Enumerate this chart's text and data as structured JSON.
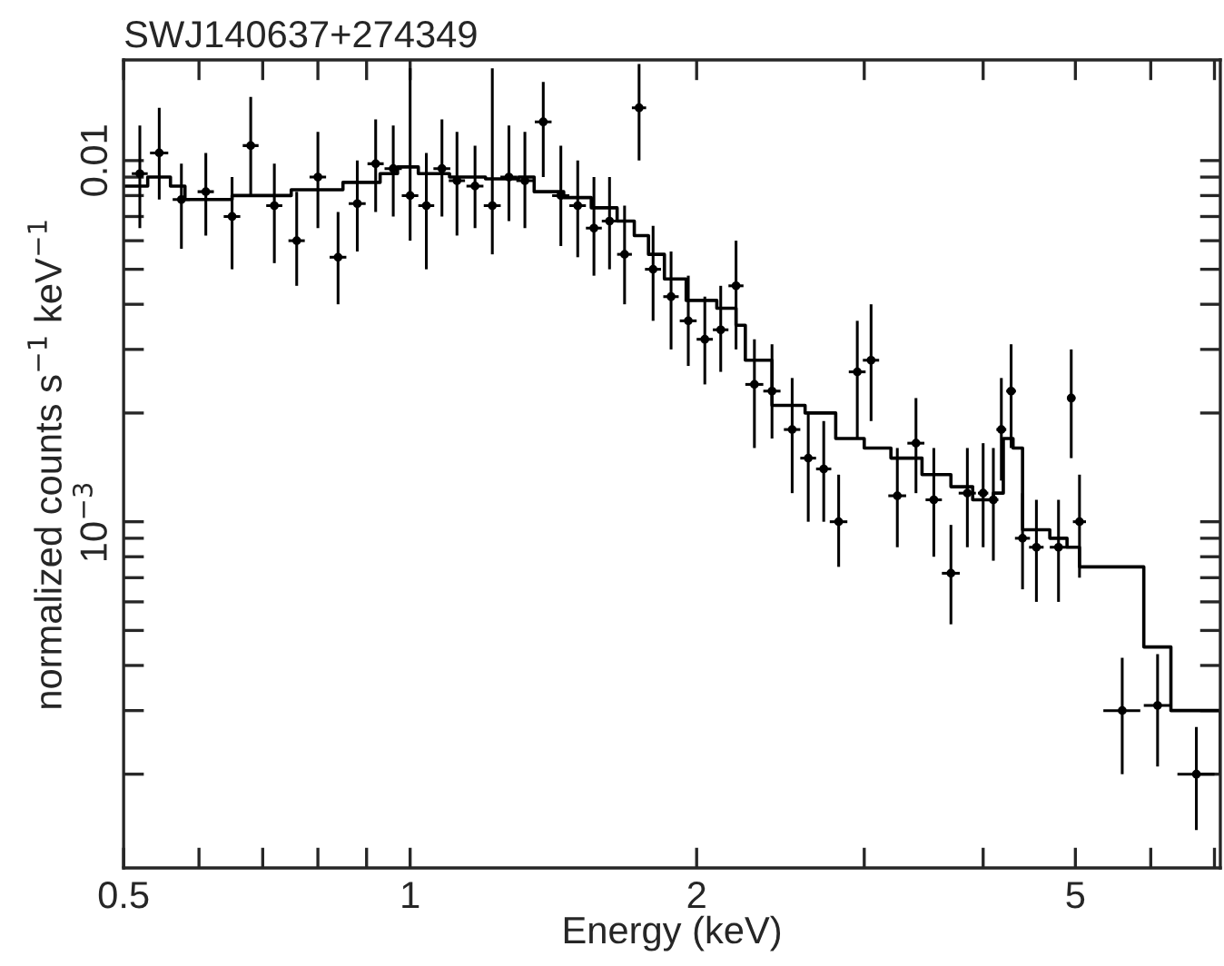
{
  "chart_data": {
    "type": "scatter",
    "title": "SWJ140637+274349",
    "xlabel": "Energy (keV)",
    "ylabel": "normalized counts s$^{−1}$ keV$^{−1}$",
    "log": "xy",
    "grid": false,
    "legend": false,
    "xlim": [
      0.5,
      7.1
    ],
    "ylim": [
      0.00011,
      0.019
    ],
    "xticks": [
      0.5,
      {
        "value": 0.6,
        "label": null
      },
      {
        "value": 0.7,
        "label": null
      },
      {
        "value": 0.8,
        "label": null
      },
      {
        "value": 0.9,
        "label": null
      },
      1,
      2,
      {
        "value": 3,
        "label": null
      },
      {
        "value": 4,
        "label": null
      },
      5,
      {
        "value": 6,
        "label": null
      },
      {
        "value": 7,
        "label": null
      }
    ],
    "yticks": [
      {
        "value": 0.0002,
        "label": null
      },
      {
        "value": 0.0003,
        "label": null
      },
      {
        "value": 0.0004,
        "label": null
      },
      {
        "value": 0.0005,
        "label": null
      },
      {
        "value": 0.0006,
        "label": null
      },
      {
        "value": 0.0007,
        "label": null
      },
      {
        "value": 0.0008,
        "label": null
      },
      {
        "value": 0.0009,
        "label": null
      },
      {
        "value": 0.001,
        "label": "10$^{−3}$"
      },
      {
        "value": 0.002,
        "label": null
      },
      {
        "value": 0.003,
        "label": null
      },
      {
        "value": 0.004,
        "label": null
      },
      {
        "value": 0.005,
        "label": null
      },
      {
        "value": 0.006,
        "label": null
      },
      {
        "value": 0.007,
        "label": null
      },
      {
        "value": 0.008,
        "label": null
      },
      {
        "value": 0.009,
        "label": null
      },
      {
        "value": 0.01,
        "label": "0.01"
      }
    ],
    "series": [
      {
        "marker": "circle",
        "color": "#000000",
        "x": [
          0.52,
          0.545,
          0.575,
          0.61,
          0.65,
          0.68,
          0.72,
          0.76,
          0.8,
          0.84,
          0.88,
          0.92,
          0.96,
          1.0,
          1.04,
          1.08,
          1.12,
          1.17,
          1.22,
          1.27,
          1.32,
          1.38,
          1.44,
          1.5,
          1.56,
          1.62,
          1.68,
          1.74,
          1.8,
          1.88,
          1.96,
          2.04,
          2.12,
          2.2,
          2.3,
          2.4,
          2.52,
          2.62,
          2.72,
          2.82,
          2.95,
          3.05,
          3.25,
          3.4,
          3.55,
          3.7,
          3.85,
          4.0,
          4.1,
          4.18,
          4.28,
          4.4,
          4.55,
          4.8,
          4.95,
          5.05,
          5.6,
          6.1,
          6.7
        ],
        "values": [
          0.0092,
          0.0105,
          0.0078,
          0.0082,
          0.007,
          0.011,
          0.0075,
          0.006,
          0.009,
          0.0054,
          0.0076,
          0.0098,
          0.0095,
          0.008,
          0.0075,
          0.0095,
          0.0088,
          0.0085,
          0.0075,
          0.009,
          0.0088,
          0.0128,
          0.008,
          0.0075,
          0.0065,
          0.0068,
          0.0055,
          0.014,
          0.005,
          0.0042,
          0.0036,
          0.0032,
          0.0034,
          0.0045,
          0.0024,
          0.0023,
          0.0018,
          0.0015,
          0.0014,
          0.001,
          0.0026,
          0.0028,
          0.00118,
          0.00165,
          0.00115,
          0.00072,
          0.0012,
          0.0012,
          0.00115,
          0.0018,
          0.0023,
          0.0009,
          0.00085,
          0.00085,
          0.0022,
          0.001,
          0.0003,
          0.00031,
          0.0002
        ],
        "errors": [
          [
            0.0065,
            0.0125
          ],
          [
            0.0078,
            0.014
          ],
          [
            0.0057,
            0.0098
          ],
          [
            0.0062,
            0.0105
          ],
          [
            0.005,
            0.009
          ],
          [
            0.008,
            0.015
          ],
          [
            0.0052,
            0.0098
          ],
          [
            0.0045,
            0.0082
          ],
          [
            0.0065,
            0.012
          ],
          [
            0.004,
            0.0072
          ],
          [
            0.0056,
            0.01
          ],
          [
            0.0072,
            0.013
          ],
          [
            0.007,
            0.0125
          ],
          [
            0.006,
            0.018
          ],
          [
            0.005,
            0.0105
          ],
          [
            0.007,
            0.013
          ],
          [
            0.0062,
            0.012
          ],
          [
            0.0065,
            0.011
          ],
          [
            0.0055,
            0.018
          ],
          [
            0.0068,
            0.0125
          ],
          [
            0.0065,
            0.012
          ],
          [
            0.009,
            0.0165
          ],
          [
            0.0058,
            0.011
          ],
          [
            0.0054,
            0.01
          ],
          [
            0.0048,
            0.009
          ],
          [
            0.005,
            0.009
          ],
          [
            0.004,
            0.0075
          ],
          [
            0.01,
            0.0185
          ],
          [
            0.0036,
            0.0066
          ],
          [
            0.003,
            0.0056
          ],
          [
            0.0027,
            0.0048
          ],
          [
            0.0024,
            0.0042
          ],
          [
            0.0026,
            0.0045
          ],
          [
            0.003,
            0.006
          ],
          [
            0.0016,
            0.0032
          ],
          [
            0.0017,
            0.0031
          ],
          [
            0.0012,
            0.0025
          ],
          [
            0.001,
            0.002
          ],
          [
            0.001,
            0.0019
          ],
          [
            0.00075,
            0.00135
          ],
          [
            0.0017,
            0.0036
          ],
          [
            0.0019,
            0.004
          ],
          [
            0.00085,
            0.0016
          ],
          [
            0.0012,
            0.0022
          ],
          [
            0.0008,
            0.0016
          ],
          [
            0.00052,
            0.00098
          ],
          [
            0.00085,
            0.0016
          ],
          [
            0.00085,
            0.00165
          ],
          [
            0.00078,
            0.0016
          ],
          [
            0.0013,
            0.0025
          ],
          [
            0.0016,
            0.0031
          ],
          [
            0.00065,
            0.0012
          ],
          [
            0.0006,
            0.00115
          ],
          [
            0.0006,
            0.00115
          ],
          [
            0.0015,
            0.003
          ],
          [
            0.0007,
            0.00135
          ],
          [
            0.0002,
            0.00042
          ],
          [
            0.00021,
            0.00043
          ],
          [
            0.00014,
            0.00027
          ]
        ],
        "xerrors": [
          0.01,
          0.012,
          0.012,
          0.012,
          0.013,
          0.013,
          0.014,
          0.015,
          0.016,
          0.017,
          0.018,
          0.018,
          0.02,
          0.02,
          0.02,
          0.022,
          0.022,
          0.024,
          0.025,
          0.026,
          0.027,
          0.028,
          0.03,
          0.03,
          0.03,
          0.03,
          0.03,
          0.03,
          0.035,
          0.035,
          0.04,
          0.04,
          0.04,
          0.04,
          0.05,
          0.05,
          0.05,
          0.05,
          0.05,
          0.06,
          0.06,
          0.06,
          0.07,
          0.07,
          0.07,
          0.08,
          0.08,
          0.05,
          0.05,
          0.05,
          0.05,
          0.08,
          0.08,
          0.1,
          0.05,
          0.08,
          0.25,
          0.2,
          0.3
        ]
      },
      {
        "type": "step",
        "line_style": "solid",
        "color": "#000000",
        "x": [
          0.5,
          0.53,
          0.56,
          0.58,
          0.65,
          0.75,
          0.85,
          0.93,
          0.97,
          1.02,
          1.1,
          1.2,
          1.3,
          1.35,
          1.45,
          1.55,
          1.65,
          1.72,
          1.78,
          1.85,
          1.95,
          2.1,
          2.2,
          2.25,
          2.4,
          2.6,
          2.8,
          3.0,
          3.2,
          3.45,
          3.7,
          3.9,
          4.1,
          4.2,
          4.3,
          4.4,
          4.7,
          4.9,
          5.05,
          5.9,
          6.3,
          7.1
        ],
        "values": [
          0.0085,
          0.009,
          0.0085,
          0.0078,
          0.008,
          0.0083,
          0.0087,
          0.0092,
          0.0096,
          0.0092,
          0.009,
          0.0089,
          0.009,
          0.0082,
          0.0079,
          0.0074,
          0.0068,
          0.0062,
          0.0055,
          0.0047,
          0.0041,
          0.0039,
          0.0035,
          0.0028,
          0.0021,
          0.002,
          0.0017,
          0.0016,
          0.0015,
          0.00135,
          0.00125,
          0.00115,
          0.0012,
          0.0017,
          0.0016,
          0.00095,
          0.0009,
          0.00085,
          0.00075,
          0.00045,
          0.0003,
          0.0002
        ]
      }
    ]
  }
}
